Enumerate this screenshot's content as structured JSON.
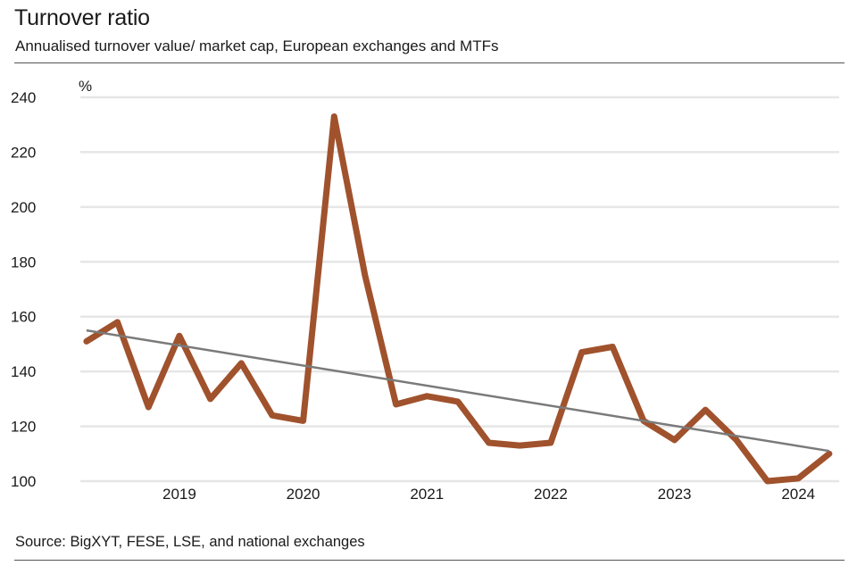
{
  "title": "Turnover ratio",
  "subtitle": "Annualised turnover value/ market cap, European exchanges and MTFs",
  "source": "Source: BigXYT, FESE, LSE, and national exchanges",
  "colors": {
    "series": "#a0522d",
    "trend": "#7a7a7a",
    "grid": "#e6e6e6"
  },
  "chart_data": {
    "type": "line",
    "title": "Turnover ratio",
    "subtitle": "Annualised turnover value/ market cap, European exchanges and MTFs",
    "ylabel": "%",
    "xlabel": "",
    "ylim": [
      100,
      240
    ],
    "yticks": [
      "100",
      "120",
      "140",
      "160",
      "180",
      "200",
      "220",
      "240"
    ],
    "xlim": [
      2018.2,
      2024.33
    ],
    "xticks": [
      {
        "value": 2019,
        "label": "2019"
      },
      {
        "value": 2020,
        "label": "2020"
      },
      {
        "value": 2021,
        "label": "2021"
      },
      {
        "value": 2022,
        "label": "2022"
      },
      {
        "value": 2023,
        "label": "2023"
      },
      {
        "value": 2024,
        "label": "2024"
      }
    ],
    "grid": true,
    "series": [
      {
        "name": "Turnover ratio",
        "x": [
          2018.25,
          2018.5,
          2018.75,
          2019.0,
          2019.25,
          2019.5,
          2019.75,
          2020.0,
          2020.25,
          2020.5,
          2020.75,
          2021.0,
          2021.25,
          2021.5,
          2021.75,
          2022.0,
          2022.25,
          2022.5,
          2022.75,
          2023.0,
          2023.25,
          2023.5,
          2023.75,
          2024.0,
          2024.25
        ],
        "values": [
          151,
          158,
          127,
          153,
          130,
          143,
          124,
          122,
          233,
          175,
          128,
          131,
          129,
          114,
          113,
          114,
          147,
          149,
          122,
          115,
          126,
          115,
          100,
          101,
          110
        ]
      },
      {
        "name": "Trend",
        "x": [
          2018.25,
          2024.25
        ],
        "values": [
          155,
          111
        ]
      }
    ]
  }
}
